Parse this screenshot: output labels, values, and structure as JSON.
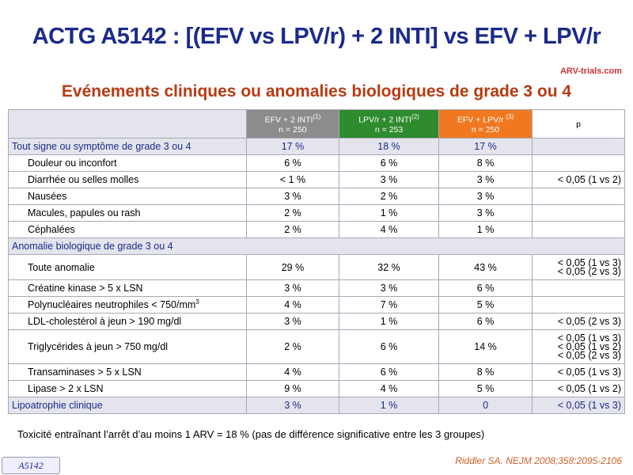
{
  "header": {
    "title": "ACTG A5142 : [(EFV vs LPV/r) + 2 INTI] vs EFV + LPV/r",
    "logo": "ARV-trials.com",
    "subtitle": "Evénements cliniques ou anomalies biologiques de grade 3 ou 4"
  },
  "table": {
    "columns": [
      {
        "label": "EFV + 2 INTI",
        "sup": "(1)",
        "n": "n = 250"
      },
      {
        "label": "LPV/r + 2 INTI",
        "sup": "(2)",
        "n": "n = 253"
      },
      {
        "label": "EFV + LPV/r ",
        "sup": "(3)",
        "n": "n = 250"
      },
      {
        "label": "p"
      }
    ],
    "rows": [
      {
        "label": "Tout signe ou symptôme de grade 3 ou 4",
        "values": [
          "17 %",
          "18 %",
          "17 %"
        ],
        "p": []
      },
      {
        "label": "Douleur ou inconfort",
        "values": [
          "6 %",
          "6 %",
          "8 %"
        ],
        "p": []
      },
      {
        "label": "Diarrhée ou selles molles",
        "values": [
          "< 1 %",
          "3 %",
          "3 %"
        ],
        "p": [
          "< 0,05 (1 vs 2)"
        ]
      },
      {
        "label": "Nausées",
        "values": [
          "3 %",
          "2 %",
          "3 %"
        ],
        "p": []
      },
      {
        "label": "Macules, papules ou rash",
        "values": [
          "2 %",
          "1 %",
          "3 %"
        ],
        "p": []
      },
      {
        "label": "Céphalées",
        "values": [
          "2 %",
          "4 %",
          "1 %"
        ],
        "p": []
      },
      {
        "label": "Anomalie biologique de grade 3 ou 4",
        "values": [],
        "p": []
      },
      {
        "label": "Toute anomalie",
        "values": [
          "29 %",
          "32 %",
          "43 %"
        ],
        "p": [
          "< 0,05 (1 vs 3)",
          "< 0,05 (2 vs 3)"
        ]
      },
      {
        "label": "Créatine kinase > 5 x LSN",
        "values": [
          "3 %",
          "3 %",
          "6 %"
        ],
        "p": []
      },
      {
        "label": "Polynucléaires neutrophiles < 750/mm",
        "sup": "3",
        "values": [
          "4 %",
          "7 %",
          "5 %"
        ],
        "p": []
      },
      {
        "label": "LDL-cholestérol à jeun > 190 mg/dl",
        "values": [
          "3 %",
          "1 %",
          "6 %"
        ],
        "p": [
          "< 0,05 (2 vs 3)"
        ]
      },
      {
        "label": "Triglycérides à jeun > 750 mg/dl",
        "values": [
          "2 %",
          "6 %",
          "14 %"
        ],
        "p": [
          "< 0,05 (1 vs 3)",
          "< 0,05 (1 vs 2)",
          "< 0,05 (2 vs 3)"
        ]
      },
      {
        "label": "Transaminases > 5 x LSN",
        "values": [
          "4 %",
          "6 %",
          "8 %"
        ],
        "p": [
          "< 0,05 (1 vs 3)"
        ]
      },
      {
        "label": "Lipase > 2 x LSN",
        "values": [
          "9 %",
          "4 %",
          "5 %"
        ],
        "p": [
          "< 0,05 (1 vs 2)"
        ]
      },
      {
        "label": "Lipoatrophie clinique",
        "values": [
          "3 %",
          "1 %",
          "0"
        ],
        "p": [
          "< 0,05 (1 vs 3)"
        ]
      }
    ]
  },
  "footer": {
    "note": "Toxicité entraînant l’arrêt d’au moins 1 ARV = 18 % (pas de différence significative entre les 3 groupes)",
    "tag": "A5142",
    "citation": "Riddler SA. NEJM 2008;358:2095-2106"
  }
}
